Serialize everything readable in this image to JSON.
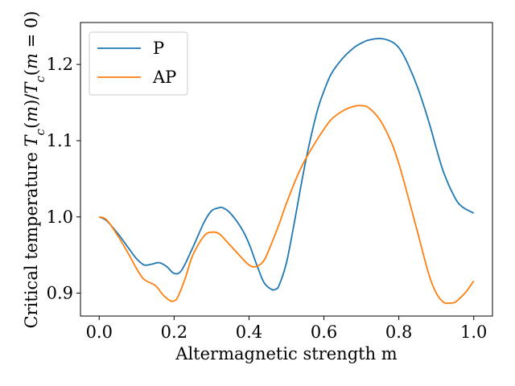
{
  "chart_data": {
    "type": "line",
    "xlabel": "Altermagnetic strength m",
    "ylabel": "Critical temperature Tc(m)/Tc(m=0)",
    "xlim": [
      -0.05,
      1.05
    ],
    "ylim": [
      0.87,
      1.255
    ],
    "xticks": [
      {
        "value": 0.0,
        "label": "0.0"
      },
      {
        "value": 0.2,
        "label": "0.2"
      },
      {
        "value": 0.4,
        "label": "0.4"
      },
      {
        "value": 0.6,
        "label": "0.6"
      },
      {
        "value": 0.8,
        "label": "0.8"
      },
      {
        "value": 1.0,
        "label": "1.0"
      }
    ],
    "yticks": [
      {
        "value": 0.9,
        "label": "0.9"
      },
      {
        "value": 1.0,
        "label": "1.0"
      },
      {
        "value": 1.1,
        "label": "1.1"
      },
      {
        "value": 1.2,
        "label": "1.2"
      }
    ],
    "grid": false,
    "legend_position": "top-left",
    "series": [
      {
        "name": "P",
        "color": "#1f77b4",
        "x": [
          0.0,
          0.02,
          0.05,
          0.08,
          0.1,
          0.12,
          0.14,
          0.16,
          0.18,
          0.2,
          0.22,
          0.25,
          0.28,
          0.3,
          0.32,
          0.33,
          0.35,
          0.38,
          0.4,
          0.42,
          0.44,
          0.46,
          0.47,
          0.48,
          0.5,
          0.52,
          0.55,
          0.58,
          0.6,
          0.62,
          0.65,
          0.68,
          0.7,
          0.72,
          0.75,
          0.78,
          0.8,
          0.82,
          0.85,
          0.88,
          0.9,
          0.92,
          0.95,
          0.97,
          1.0
        ],
        "y": [
          1.0,
          0.995,
          0.978,
          0.958,
          0.945,
          0.937,
          0.938,
          0.94,
          0.935,
          0.926,
          0.93,
          0.96,
          0.993,
          1.008,
          1.012,
          1.012,
          1.005,
          0.985,
          0.965,
          0.938,
          0.914,
          0.905,
          0.905,
          0.91,
          0.94,
          0.99,
          1.07,
          1.135,
          1.165,
          1.188,
          1.208,
          1.222,
          1.228,
          1.232,
          1.234,
          1.23,
          1.222,
          1.205,
          1.17,
          1.125,
          1.09,
          1.058,
          1.025,
          1.013,
          1.005
        ]
      },
      {
        "name": "AP",
        "color": "#ff7f0e",
        "x": [
          0.0,
          0.02,
          0.05,
          0.08,
          0.1,
          0.12,
          0.15,
          0.17,
          0.19,
          0.2,
          0.21,
          0.23,
          0.25,
          0.28,
          0.3,
          0.32,
          0.34,
          0.37,
          0.4,
          0.42,
          0.44,
          0.46,
          0.48,
          0.5,
          0.53,
          0.55,
          0.58,
          0.6,
          0.62,
          0.65,
          0.68,
          0.7,
          0.72,
          0.75,
          0.78,
          0.8,
          0.82,
          0.85,
          0.88,
          0.9,
          0.92,
          0.94,
          0.95,
          0.96,
          0.98,
          1.0
        ],
        "y": [
          1.0,
          0.996,
          0.975,
          0.95,
          0.932,
          0.918,
          0.91,
          0.898,
          0.89,
          0.89,
          0.895,
          0.92,
          0.95,
          0.975,
          0.98,
          0.978,
          0.968,
          0.952,
          0.937,
          0.935,
          0.943,
          0.965,
          0.99,
          1.018,
          1.055,
          1.075,
          1.1,
          1.115,
          1.128,
          1.139,
          1.145,
          1.146,
          1.143,
          1.127,
          1.098,
          1.07,
          1.035,
          0.98,
          0.925,
          0.9,
          0.888,
          0.887,
          0.888,
          0.892,
          0.902,
          0.916
        ]
      }
    ]
  }
}
